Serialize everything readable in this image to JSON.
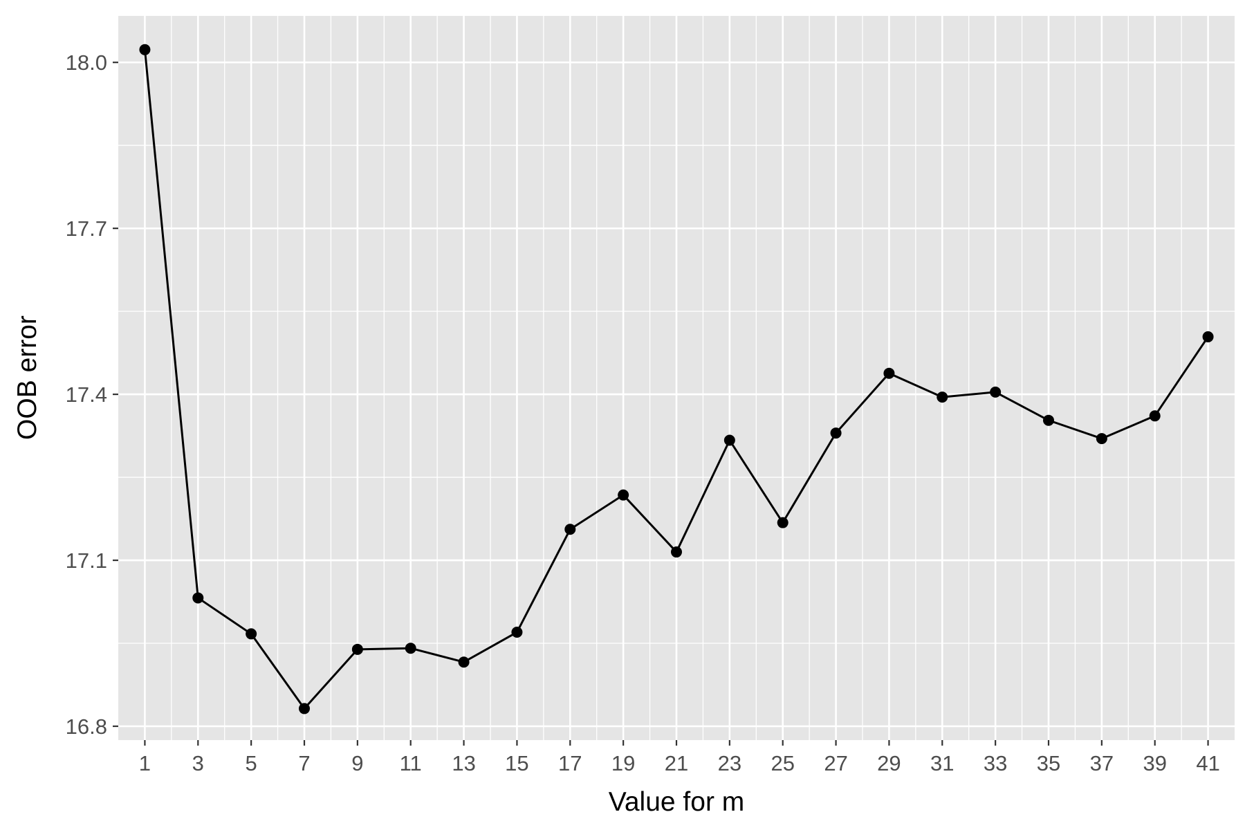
{
  "chart_data": {
    "type": "line",
    "title": "",
    "xlabel": "Value for m",
    "ylabel": "OOB error",
    "x": [
      1,
      3,
      5,
      7,
      9,
      11,
      13,
      15,
      17,
      19,
      21,
      23,
      25,
      27,
      29,
      31,
      33,
      35,
      37,
      39,
      41
    ],
    "series": [
      {
        "values": [
          18.023,
          17.032,
          16.967,
          16.832,
          16.939,
          16.941,
          16.916,
          16.97,
          17.156,
          17.218,
          17.115,
          17.317,
          17.168,
          17.33,
          17.438,
          17.395,
          17.404,
          17.353,
          17.32,
          17.361,
          17.504
        ]
      }
    ],
    "xticks": [
      1,
      3,
      5,
      7,
      9,
      11,
      13,
      15,
      17,
      19,
      21,
      23,
      25,
      27,
      29,
      31,
      33,
      35,
      37,
      39,
      41
    ],
    "xtick_labels": [
      "1",
      "3",
      "5",
      "7",
      "9",
      "11",
      "13",
      "15",
      "17",
      "19",
      "21",
      "23",
      "25",
      "27",
      "29",
      "31",
      "33",
      "35",
      "37",
      "39",
      "41"
    ],
    "yticks": [
      16.8,
      17.1,
      17.4,
      17.7,
      18.0
    ],
    "ytick_labels": [
      "16.8",
      "17.1",
      "17.4",
      "17.7",
      "18.0"
    ],
    "xlim": [
      0.0,
      42.0
    ],
    "ylim": [
      16.775,
      18.084
    ],
    "grid": true,
    "legend": "none",
    "colors": {
      "panel_background": "#e5e5e5",
      "grid_line": "#ffffff",
      "line": "#000000",
      "point": "#000000",
      "tick_mark": "#333333",
      "tick_label": "#4d4d4d",
      "axis_title": "#000000"
    }
  }
}
